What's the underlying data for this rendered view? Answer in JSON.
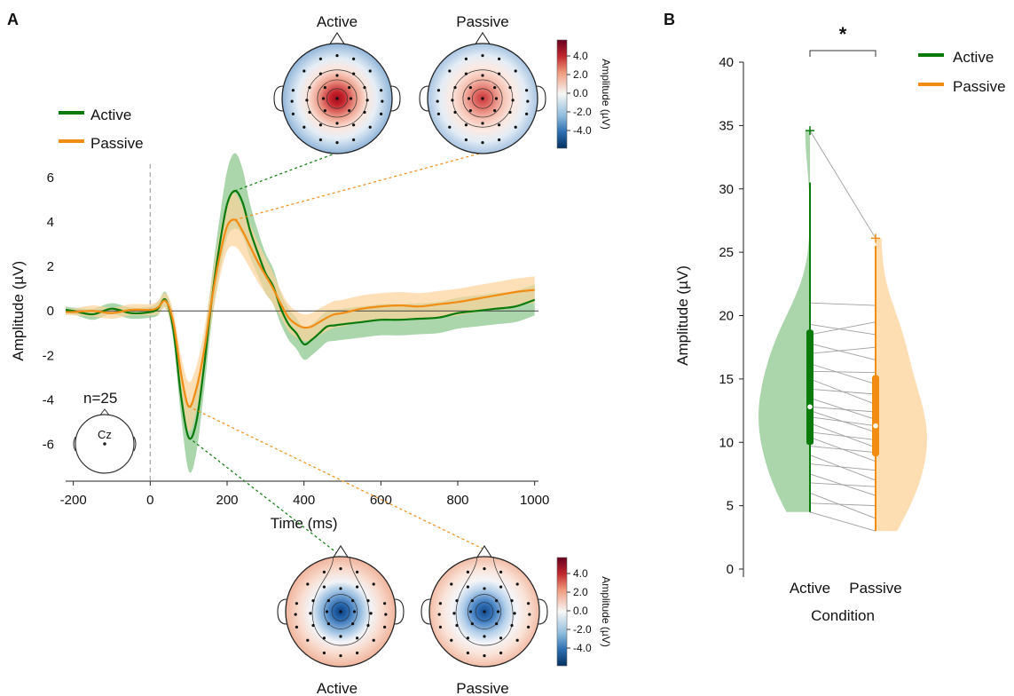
{
  "panel_labels": {
    "a": "A",
    "b": "B"
  },
  "colors": {
    "active": "#0a7a0a",
    "passive": "#f28c13",
    "active_fill": "#8fc78f",
    "passive_fill": "#fcd39a",
    "cmap_pos": "#c1121f",
    "cmap_neg": "#1d5fa8",
    "line_gray": "#a0a0a0"
  },
  "topomaps": {
    "top_titles": [
      "Active",
      "Passive"
    ],
    "bottom_titles": [
      "Active",
      "Passive"
    ],
    "colorbar": {
      "label": "Amplitude (µV)",
      "ticks": [
        "4.0",
        "2.0",
        "0.0",
        "-2.0",
        "-4.0"
      ]
    }
  },
  "electrode_label": "Cz",
  "n_label": "n=25",
  "chart_data": [
    {
      "type": "line",
      "xlabel": "Time (ms)",
      "ylabel": "Amplitude (µV)",
      "xlim": [
        -220,
        1010
      ],
      "ylim": [
        -7.5,
        6.6
      ],
      "xticks": [
        -200,
        0,
        200,
        400,
        600,
        800,
        1000
      ],
      "xtick_labels": [
        "-200",
        "0",
        "200",
        "400",
        "600",
        "800",
        "1000"
      ],
      "yticks": [
        -6,
        -4,
        -2,
        0,
        2,
        4,
        6
      ],
      "ytick_labels": [
        "-6",
        "-4",
        "-2",
        "0",
        "2",
        "4",
        "6"
      ],
      "legend": {
        "position": "top-left",
        "entries": [
          "Active",
          "Passive"
        ]
      },
      "series": [
        {
          "name": "Active",
          "x": [
            -220,
            -200,
            -150,
            -100,
            -50,
            0,
            20,
            40,
            60,
            80,
            100,
            120,
            140,
            160,
            180,
            200,
            220,
            240,
            260,
            280,
            300,
            320,
            340,
            360,
            380,
            400,
            420,
            440,
            460,
            480,
            500,
            550,
            600,
            650,
            700,
            750,
            800,
            850,
            900,
            950,
            1000
          ],
          "y": [
            0.05,
            0.0,
            -0.15,
            0.1,
            -0.1,
            -0.05,
            0.1,
            0.5,
            -0.8,
            -3.8,
            -5.7,
            -5.0,
            -2.5,
            0.5,
            2.9,
            4.8,
            5.4,
            4.9,
            3.6,
            2.6,
            1.7,
            1.1,
            0.1,
            -0.6,
            -1.0,
            -1.5,
            -1.3,
            -1.0,
            -0.7,
            -0.65,
            -0.6,
            -0.5,
            -0.4,
            -0.4,
            -0.35,
            -0.3,
            -0.1,
            0.0,
            0.1,
            0.2,
            0.5
          ],
          "ci": [
            0.15,
            0.15,
            0.25,
            0.25,
            0.25,
            0.25,
            0.3,
            0.35,
            0.5,
            0.9,
            1.5,
            1.4,
            1.1,
            1.0,
            1.2,
            1.5,
            1.7,
            1.5,
            1.2,
            1.0,
            0.9,
            0.8,
            0.7,
            0.7,
            0.7,
            0.7,
            0.7,
            0.7,
            0.7,
            0.7,
            0.7,
            0.7,
            0.7,
            0.7,
            0.7,
            0.7,
            0.7,
            0.7,
            0.7,
            0.7,
            0.7
          ]
        },
        {
          "name": "Passive",
          "x": [
            -220,
            -200,
            -150,
            -100,
            -50,
            0,
            20,
            40,
            60,
            80,
            100,
            120,
            140,
            160,
            180,
            200,
            220,
            240,
            260,
            280,
            300,
            320,
            340,
            360,
            380,
            400,
            420,
            440,
            460,
            480,
            500,
            550,
            600,
            650,
            700,
            750,
            800,
            850,
            900,
            950,
            1000
          ],
          "y": [
            -0.05,
            -0.05,
            0.0,
            -0.1,
            0.05,
            0.05,
            0.15,
            0.45,
            -0.5,
            -2.8,
            -4.3,
            -3.5,
            -1.8,
            0.5,
            2.4,
            3.8,
            4.1,
            3.6,
            2.9,
            2.2,
            1.6,
            1.0,
            0.3,
            -0.3,
            -0.6,
            -0.75,
            -0.7,
            -0.5,
            -0.3,
            -0.15,
            -0.1,
            0.1,
            0.2,
            0.25,
            0.2,
            0.3,
            0.4,
            0.55,
            0.7,
            0.85,
            0.95
          ],
          "ci": [
            0.15,
            0.15,
            0.25,
            0.25,
            0.25,
            0.25,
            0.3,
            0.35,
            0.5,
            0.8,
            1.1,
            1.0,
            0.9,
            0.9,
            1.0,
            1.1,
            1.2,
            1.1,
            1.0,
            0.9,
            0.8,
            0.7,
            0.6,
            0.6,
            0.6,
            0.6,
            0.6,
            0.6,
            0.6,
            0.6,
            0.6,
            0.6,
            0.6,
            0.6,
            0.6,
            0.6,
            0.6,
            0.6,
            0.6,
            0.6,
            0.6
          ]
        }
      ]
    },
    {
      "type": "violin",
      "xlabel": "Condition",
      "ylabel": "Amplitude (µV)",
      "categories": [
        "Active",
        "Passive"
      ],
      "ylim": [
        0,
        40
      ],
      "yticks": [
        0,
        5,
        10,
        15,
        20,
        25,
        30,
        35,
        40
      ],
      "ytick_labels": [
        "0",
        "5",
        "10",
        "15",
        "20",
        "25",
        "30",
        "35",
        "40"
      ],
      "significance": "*",
      "legend": {
        "position": "top-right",
        "entries": [
          "Active",
          "Passive"
        ]
      },
      "series": [
        {
          "name": "Active",
          "values": [
            4.5,
            5.2,
            6.0,
            6.8,
            7.5,
            8.3,
            9.0,
            9.7,
            10.4,
            10.8,
            11.5,
            12.0,
            12.5,
            12.8,
            13.5,
            14.2,
            15.0,
            15.6,
            16.2,
            17.0,
            17.8,
            18.5,
            19.3,
            21.0,
            34.6
          ],
          "median": 12.8,
          "q1": 9.8,
          "q3": 18.9,
          "whisker_high": 30.5,
          "whisker_low": 4.5,
          "max": 34.6
        },
        {
          "name": "Passive",
          "values": [
            3.0,
            4.0,
            5.0,
            5.8,
            6.5,
            7.0,
            7.8,
            8.5,
            9.2,
            9.6,
            10.2,
            10.8,
            11.3,
            11.8,
            12.4,
            13.0,
            13.8,
            14.6,
            15.5,
            16.5,
            17.5,
            18.5,
            19.5,
            20.8,
            26.1
          ],
          "median": 11.3,
          "q1": 8.9,
          "q3": 15.3,
          "whisker_high": 25.5,
          "whisker_low": 3.0,
          "max": 26.1
        }
      ]
    }
  ]
}
